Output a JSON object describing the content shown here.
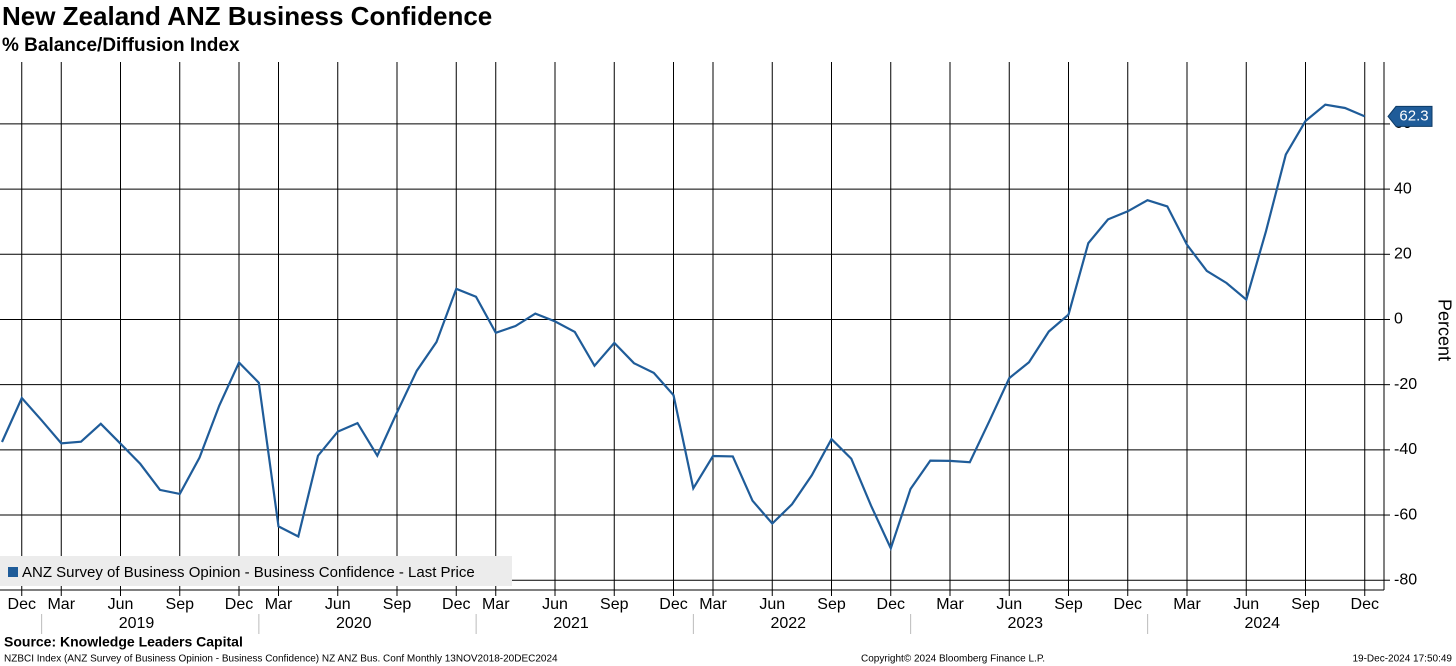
{
  "chart_data": {
    "type": "line",
    "title": "New Zealand ANZ Business Confidence",
    "subtitle": "% Balance/Diffusion Index",
    "y_axis_label": "Percent",
    "categories": [
      null,
      "Dec",
      null,
      "Mar",
      null,
      null,
      "Jun",
      null,
      null,
      "Sep",
      null,
      null,
      "Dec",
      null,
      "Mar",
      null,
      null,
      "Jun",
      null,
      null,
      "Sep",
      null,
      null,
      "Dec",
      null,
      "Mar",
      null,
      null,
      "Jun",
      null,
      null,
      "Sep",
      null,
      null,
      "Dec",
      null,
      "Mar",
      null,
      null,
      "Jun",
      null,
      null,
      "Sep",
      null,
      null,
      "Dec",
      null,
      null,
      "Mar",
      null,
      null,
      "Jun",
      null,
      null,
      "Sep",
      null,
      null,
      "Dec",
      null,
      null,
      "Mar",
      null,
      null,
      "Jun",
      null,
      null,
      "Sep",
      null,
      null,
      "Dec"
    ],
    "years": [
      "2019",
      "2020",
      "2021",
      "2022",
      "2023",
      "2024"
    ],
    "series": [
      {
        "name": "ANZ Survey of Business Opinion - Business Confidence - Last Price",
        "color": "#1f5c99",
        "values": [
          -37.6,
          -24.1,
          -30.9,
          -38.0,
          -37.5,
          -32.0,
          -38.1,
          -44.3,
          -52.3,
          -53.5,
          -42.4,
          -26.4,
          -13.2,
          -19.4,
          -63.5,
          -66.6,
          -41.8,
          -34.4,
          -31.8,
          -41.8,
          -28.5,
          -15.7,
          -6.9,
          9.4,
          7.0,
          -4.1,
          -2.0,
          1.8,
          -0.6,
          -3.8,
          -14.2,
          -7.2,
          -13.4,
          -16.4,
          -23.2,
          -51.8,
          -41.9,
          -42.0,
          -55.6,
          -62.6,
          -56.7,
          -47.8,
          -36.7,
          -42.7,
          -57.1,
          -70.2,
          -52.0,
          -43.3,
          -43.4,
          -43.8,
          -31.1,
          -18.0,
          -13.1,
          -3.7,
          1.5,
          23.4,
          30.7,
          33.2,
          36.6,
          34.7,
          22.9,
          14.9,
          11.2,
          6.1,
          27.1,
          50.6,
          60.9,
          65.9,
          64.9,
          62.3
        ],
        "last_value_label": "62.3"
      }
    ],
    "ylim": [
      -83,
      79
    ],
    "yticks": [
      -80,
      -60,
      -40,
      -20,
      0,
      20,
      40,
      60
    ],
    "grid": true,
    "legend": "bottom-left",
    "source": "Source: Knowledge Leaders Capital",
    "footer_left": "NZBCI Index (ANZ Survey of Business Opinion - Business Confidence) NZ ANZ Bus. Conf  Monthly 13NOV2018-20DEC2024",
    "footer_center": "Copyright© 2024 Bloomberg Finance L.P.",
    "footer_right": "19-Dec-2024 17:50:49"
  }
}
